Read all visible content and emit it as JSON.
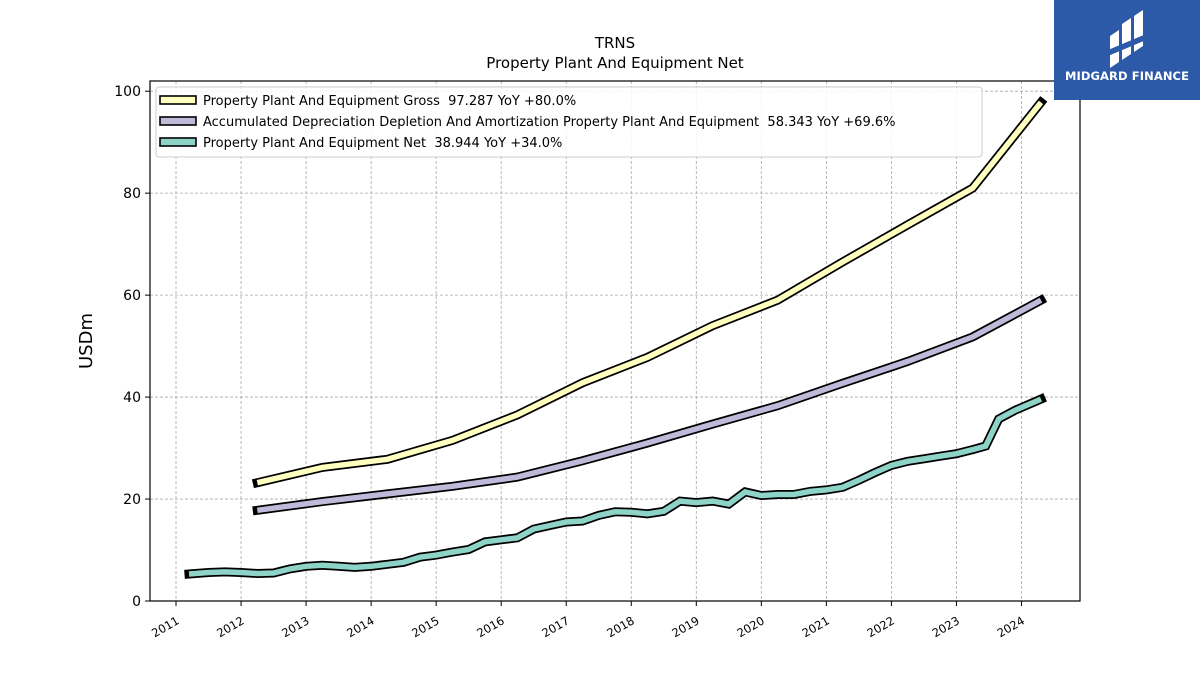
{
  "brand": {
    "name": "MIDGARD FINANCE",
    "bg_color": "#2c5aa8"
  },
  "chart_data": {
    "type": "line",
    "title": "TRNS",
    "subtitle": "Property Plant And Equipment Net",
    "xlabel": "",
    "ylabel": "USDm",
    "xlim": [
      2010.6,
      2024.9
    ],
    "ylim": [
      0,
      102
    ],
    "yticks": [
      0,
      20,
      40,
      60,
      80,
      100
    ],
    "xticks": [
      "2011",
      "2012",
      "2013",
      "2014",
      "2015",
      "2016",
      "2017",
      "2018",
      "2019",
      "2020",
      "2021",
      "2022",
      "2023",
      "2024"
    ],
    "grid": true,
    "legend_position": "top-left",
    "series": [
      {
        "name": "Property Plant And Equipment Gross  97.287 YoY +80.0%",
        "color": "#ffffbf",
        "points": [
          [
            2012.25,
            23.2
          ],
          [
            2013.25,
            26.2
          ],
          [
            2014.25,
            27.8
          ],
          [
            2015.25,
            31.5
          ],
          [
            2016.25,
            36.5
          ],
          [
            2017.25,
            42.8
          ],
          [
            2018.25,
            47.8
          ],
          [
            2019.25,
            54.0
          ],
          [
            2020.25,
            59.0
          ],
          [
            2021.25,
            66.5
          ],
          [
            2022.25,
            73.8
          ],
          [
            2023.25,
            81.0
          ],
          [
            2024.3,
            97.8
          ]
        ]
      },
      {
        "name": "Accumulated Depreciation Depletion And Amortization Property Plant And Equipment  58.343 YoY +69.6%",
        "color": "#bebada",
        "points": [
          [
            2012.25,
            17.8
          ],
          [
            2013.25,
            19.5
          ],
          [
            2014.25,
            21.0
          ],
          [
            2015.25,
            22.5
          ],
          [
            2016.25,
            24.3
          ],
          [
            2017.25,
            27.5
          ],
          [
            2018.25,
            31.0
          ],
          [
            2019.25,
            34.7
          ],
          [
            2020.25,
            38.3
          ],
          [
            2021.25,
            42.7
          ],
          [
            2022.25,
            47.0
          ],
          [
            2023.25,
            51.8
          ],
          [
            2024.3,
            59.0
          ]
        ]
      },
      {
        "name": "Property Plant And Equipment Net  38.944 YoY +34.0%",
        "color": "#8dd3c7",
        "points": [
          [
            2011.2,
            5.3
          ],
          [
            2011.5,
            5.6
          ],
          [
            2011.75,
            5.7
          ],
          [
            2012.0,
            5.6
          ],
          [
            2012.25,
            5.4
          ],
          [
            2012.5,
            5.5
          ],
          [
            2012.75,
            6.3
          ],
          [
            2013.0,
            6.8
          ],
          [
            2013.25,
            7.0
          ],
          [
            2013.5,
            6.8
          ],
          [
            2013.75,
            6.6
          ],
          [
            2014.0,
            6.8
          ],
          [
            2014.25,
            7.2
          ],
          [
            2014.5,
            7.6
          ],
          [
            2014.75,
            8.6
          ],
          [
            2015.0,
            9.0
          ],
          [
            2015.25,
            9.6
          ],
          [
            2015.5,
            10.1
          ],
          [
            2015.75,
            11.6
          ],
          [
            2016.0,
            12.0
          ],
          [
            2016.25,
            12.4
          ],
          [
            2016.5,
            14.1
          ],
          [
            2016.75,
            14.8
          ],
          [
            2017.0,
            15.5
          ],
          [
            2017.25,
            15.7
          ],
          [
            2017.5,
            16.8
          ],
          [
            2017.75,
            17.5
          ],
          [
            2018.0,
            17.4
          ],
          [
            2018.25,
            17.1
          ],
          [
            2018.5,
            17.6
          ],
          [
            2018.75,
            19.6
          ],
          [
            2019.0,
            19.3
          ],
          [
            2019.25,
            19.6
          ],
          [
            2019.5,
            19.0
          ],
          [
            2019.75,
            21.4
          ],
          [
            2020.0,
            20.7
          ],
          [
            2020.25,
            20.9
          ],
          [
            2020.5,
            20.9
          ],
          [
            2020.75,
            21.5
          ],
          [
            2021.0,
            21.8
          ],
          [
            2021.25,
            22.3
          ],
          [
            2021.5,
            23.7
          ],
          [
            2021.75,
            25.2
          ],
          [
            2022.0,
            26.6
          ],
          [
            2022.25,
            27.4
          ],
          [
            2022.5,
            27.9
          ],
          [
            2022.75,
            28.4
          ],
          [
            2023.0,
            28.9
          ],
          [
            2023.25,
            29.7
          ],
          [
            2023.45,
            30.4
          ],
          [
            2023.65,
            35.7
          ],
          [
            2023.9,
            37.4
          ],
          [
            2024.3,
            39.6
          ]
        ]
      }
    ]
  }
}
